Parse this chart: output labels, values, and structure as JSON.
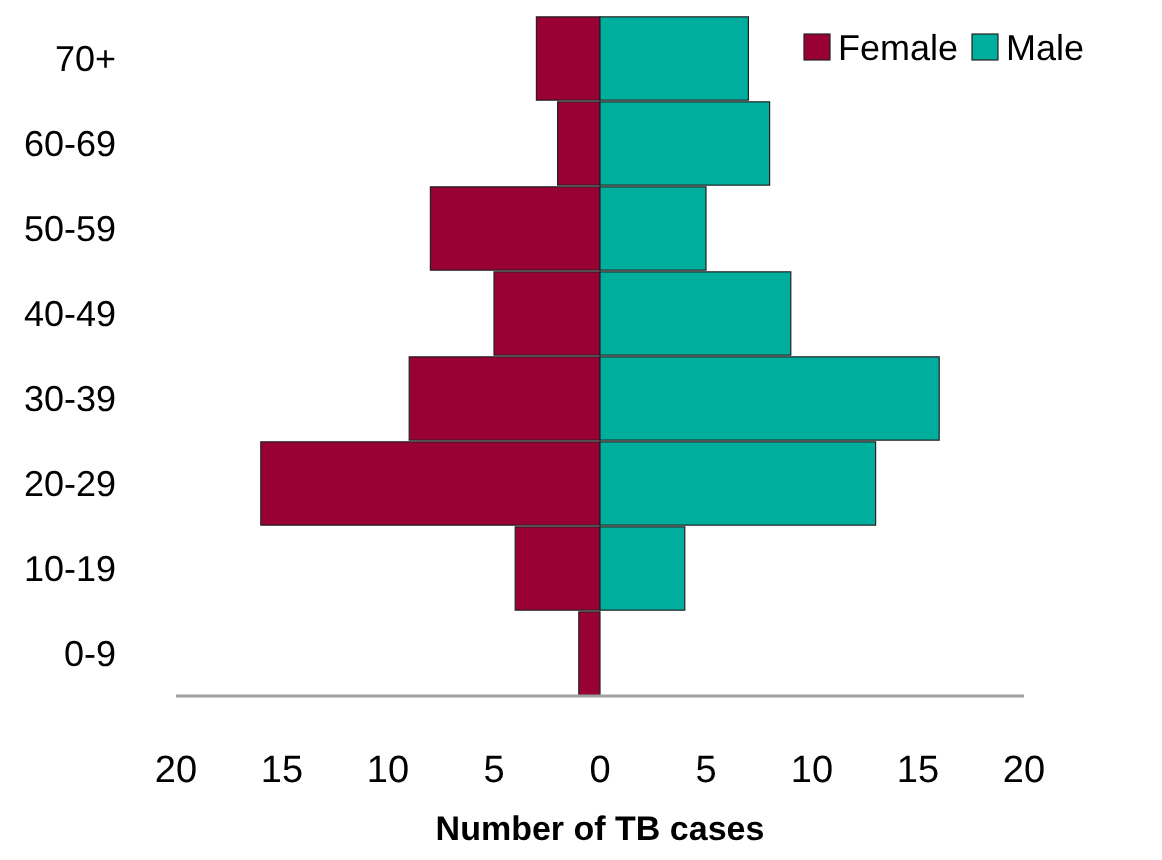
{
  "chart_data": {
    "type": "bar",
    "orientation": "horizontal",
    "stacked": true,
    "xlabel": "Number of TB cases",
    "categories": [
      "70+",
      "60-69",
      "50-59",
      "40-49",
      "30-39",
      "20-29",
      "10-19",
      "0-9"
    ],
    "series": [
      {
        "name": "Female",
        "color": "#990033",
        "values": [
          -3,
          -2,
          -8,
          -5,
          -9,
          -16,
          -4,
          -1
        ]
      },
      {
        "name": "Male",
        "color": "#00ae9e",
        "values": [
          7,
          8,
          5,
          9,
          16,
          13,
          4,
          0
        ]
      }
    ],
    "xlim": [
      -20,
      20
    ],
    "xticks": [
      {
        "value": -20,
        "label": "20"
      },
      {
        "value": -15,
        "label": "15"
      },
      {
        "value": -10,
        "label": "10"
      },
      {
        "value": -5,
        "label": "5"
      },
      0,
      5,
      10,
      15,
      20
    ],
    "legend": "top right",
    "grid": false
  }
}
